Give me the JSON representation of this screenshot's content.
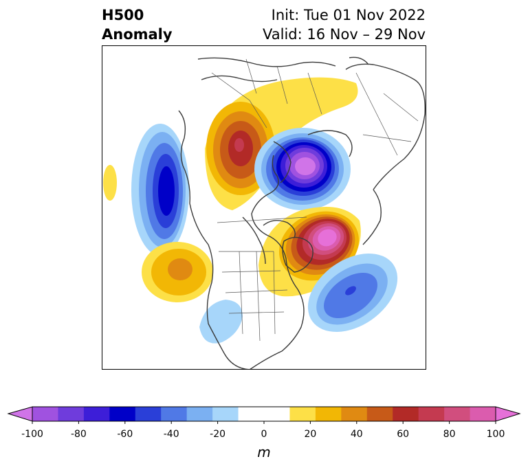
{
  "title": {
    "left_line1": "H500",
    "left_line2": "Anomaly",
    "init": "Init: Tue 01 Nov 2022",
    "valid": "Valid: 16 Nov – 29 Nov"
  },
  "map": {
    "region": "North America / North Pacific / Arctic",
    "anomaly_centers": [
      {
        "name": "north-pacific-low",
        "sign": "negative",
        "peak_m": -65
      },
      {
        "name": "alaska-bering-ridge",
        "sign": "positive",
        "peak_m": 55
      },
      {
        "name": "arctic-siberia-low",
        "sign": "negative",
        "peak_m": -95
      },
      {
        "name": "hudson-bay-ridge",
        "sign": "positive",
        "peak_m": 90
      },
      {
        "name": "north-atlantic-low",
        "sign": "negative",
        "peak_m": -60
      },
      {
        "name": "subtropical-pacific-ridge",
        "sign": "positive",
        "peak_m": 35
      },
      {
        "name": "southwest-us-low",
        "sign": "negative",
        "peak_m": -20
      },
      {
        "name": "west-pacific-ridge",
        "sign": "positive",
        "peak_m": 15
      }
    ]
  },
  "colorbar": {
    "unit": "m",
    "min": -100,
    "max": 100,
    "step": 10,
    "extend": "both",
    "colors": [
      "#d074e8",
      "#a052e0",
      "#6f3cdc",
      "#3d1ed8",
      "#0000c8",
      "#2a3fd8",
      "#5079e6",
      "#7bb0f2",
      "#a7d6fa",
      "#ffffff",
      "#ffffff",
      "#fde047",
      "#f2b705",
      "#e08a12",
      "#c75a18",
      "#b22a27",
      "#c43a50",
      "#d14e7e",
      "#db5cae",
      "#e670d8"
    ],
    "ticks": [
      "-100",
      "-80",
      "-60",
      "-40",
      "-20",
      "0",
      "20",
      "40",
      "60",
      "80",
      "100"
    ]
  }
}
